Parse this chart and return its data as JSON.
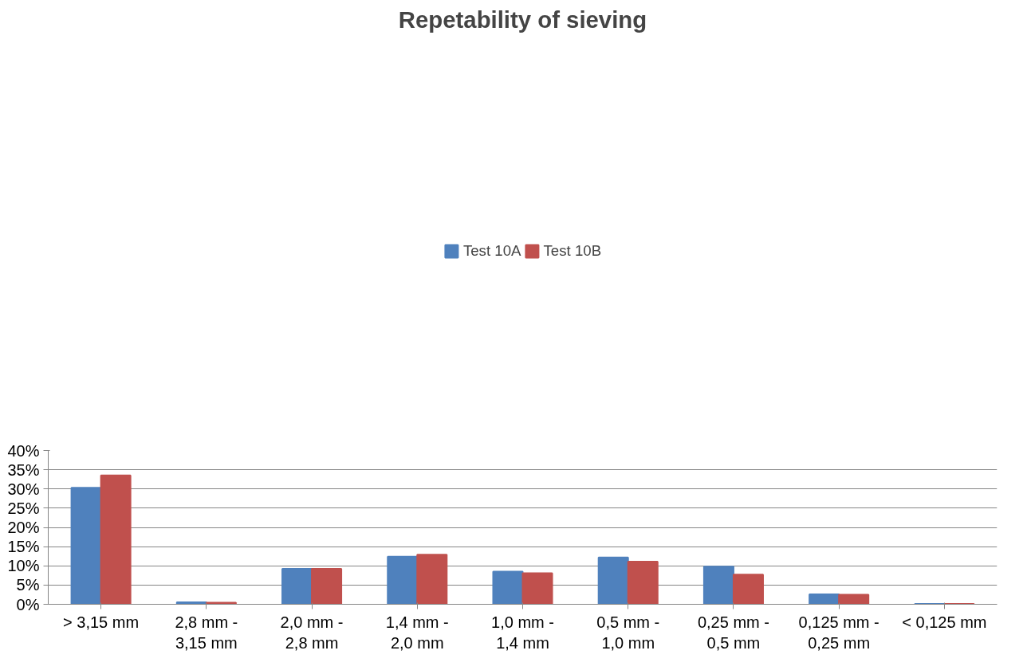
{
  "chart_data": {
    "type": "bar",
    "title": "Repetability of sieving",
    "categories": [
      "> 3,15 mm",
      "2,8 mm - 3,15 mm",
      "2,0 mm - 2,8 mm",
      "1,4 mm - 2,0 mm",
      "1,0 mm - 1,4 mm",
      "0,5 mm - 1,0 mm",
      "0,25 mm - 0,5 mm",
      "0,125 mm - 0,25 mm",
      "< 0,125 mm"
    ],
    "series": [
      {
        "name": "Test 10A",
        "color": "#4f81bd",
        "values": [
          30.3,
          0.5,
          9.2,
          12.4,
          8.5,
          12.2,
          9.8,
          2.6,
          0.1
        ]
      },
      {
        "name": "Test 10B",
        "color": "#c0504d",
        "values": [
          33.5,
          0.4,
          9.2,
          12.9,
          8.1,
          11.1,
          7.7,
          2.5,
          0.1
        ]
      }
    ],
    "ylim": [
      0,
      40
    ],
    "yticks": [
      {
        "value": 0,
        "label": "0%"
      },
      {
        "value": 5,
        "label": "5%"
      },
      {
        "value": 10,
        "label": "10%"
      },
      {
        "value": 15,
        "label": "15%"
      },
      {
        "value": 20,
        "label": "20%"
      },
      {
        "value": 25,
        "label": "25%"
      },
      {
        "value": 30,
        "label": "30%"
      },
      {
        "value": 35,
        "label": "35%"
      },
      {
        "value": 40,
        "label": "40%"
      }
    ],
    "grid": "y",
    "legend": "top"
  }
}
